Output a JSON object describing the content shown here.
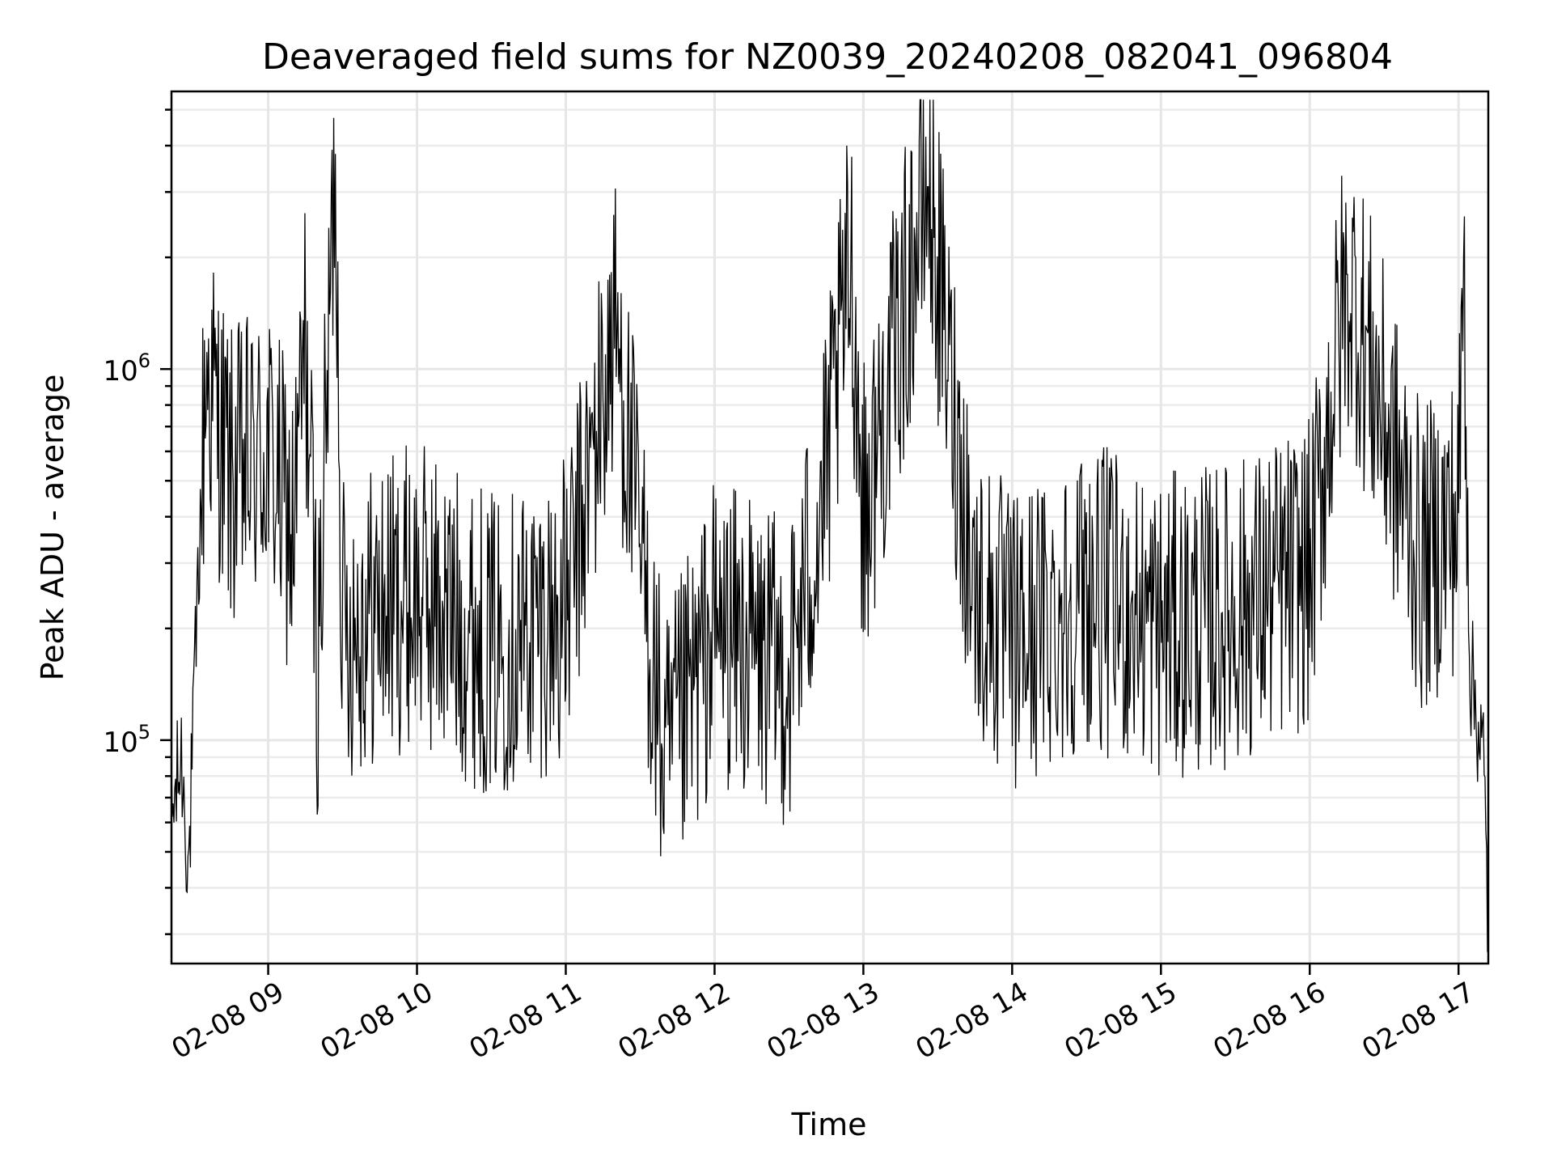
{
  "chart_data": {
    "type": "line",
    "title": "Deaveraged field sums for NZ0039_20240208_082041_096804",
    "xlabel": "Time",
    "ylabel": "Peak ADU - average",
    "x_unit": "hours",
    "x_range": [
      8.35,
      17.2
    ],
    "xlim_labels": [
      "02-08 08:21",
      "02-08 17:12"
    ],
    "y_scale": "log",
    "ylim": [
      25000,
      5600000
    ],
    "grid": true,
    "x_ticks": [
      9,
      10,
      11,
      12,
      13,
      14,
      15,
      16,
      17
    ],
    "x_tick_labels": [
      "02-08 09",
      "02-08 10",
      "02-08 11",
      "02-08 12",
      "02-08 13",
      "02-08 14",
      "02-08 15",
      "02-08 16",
      "02-08 17"
    ],
    "y_ticks": [
      100000,
      1000000
    ],
    "y_tick_labels": [
      {
        "base": "10",
        "exp": "5"
      },
      {
        "base": "10",
        "exp": "6"
      }
    ],
    "series": [
      {
        "color": "#000000",
        "n_points": 1600,
        "approx_points": [
          {
            "x": "08:21",
            "y": 60000
          },
          {
            "x": "08:25",
            "y": 90000
          },
          {
            "x": "08:28",
            "y": 45000
          },
          {
            "x": "08:32",
            "y": 300000
          },
          {
            "x": "08:35",
            "y": 1000000
          },
          {
            "x": "08:45",
            "y": 500000
          },
          {
            "x": "09:00",
            "y": 600000
          },
          {
            "x": "09:10",
            "y": 350000
          },
          {
            "x": "09:15",
            "y": 1200000
          },
          {
            "x": "09:20",
            "y": 150000
          },
          {
            "x": "09:27",
            "y": 3800000
          },
          {
            "x": "09:30",
            "y": 200000
          },
          {
            "x": "10:00",
            "y": 250000
          },
          {
            "x": "10:30",
            "y": 180000
          },
          {
            "x": "11:00",
            "y": 220000
          },
          {
            "x": "11:20",
            "y": 1300000
          },
          {
            "x": "11:40",
            "y": 80000
          },
          {
            "x": "12:00",
            "y": 200000
          },
          {
            "x": "12:30",
            "y": 150000
          },
          {
            "x": "12:45",
            "y": 500000
          },
          {
            "x": "12:55",
            "y": 2000000
          },
          {
            "x": "13:00",
            "y": 400000
          },
          {
            "x": "13:26",
            "y": 3100000
          },
          {
            "x": "13:45",
            "y": 250000
          },
          {
            "x": "14:00",
            "y": 180000
          },
          {
            "x": "14:30",
            "y": 250000
          },
          {
            "x": "15:00",
            "y": 200000
          },
          {
            "x": "15:30",
            "y": 220000
          },
          {
            "x": "16:00",
            "y": 280000
          },
          {
            "x": "16:15",
            "y": 1800000
          },
          {
            "x": "16:45",
            "y": 300000
          },
          {
            "x": "17:00",
            "y": 400000
          },
          {
            "x": "17:02",
            "y": 2000000
          },
          {
            "x": "17:05",
            "y": 150000
          },
          {
            "x": "17:10",
            "y": 90000
          },
          {
            "x": "17:12",
            "y": 30000
          }
        ]
      }
    ]
  }
}
